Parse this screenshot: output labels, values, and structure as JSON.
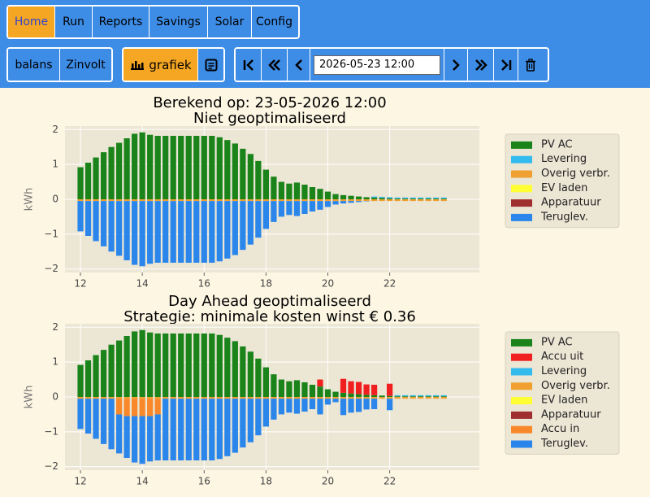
{
  "nav": {
    "tabs": [
      "Home",
      "Run",
      "Reports",
      "Savings",
      "Solar",
      "Config"
    ],
    "active": 0
  },
  "toolbar": {
    "sources": [
      "balans",
      "Zinvolt"
    ],
    "view": "grafiek",
    "date": "2026-05-23 12:00"
  },
  "chart_data": [
    {
      "type": "bar",
      "stacked": true,
      "title": "Berekend op: 23-05-2026 12:00",
      "subtitle": "Niet geoptimaliseerd",
      "y_label": "kWh",
      "grid": true,
      "legend": "right",
      "xlim": [
        11.5,
        24.9
      ],
      "ylim": [
        -2.1,
        2.1
      ],
      "xticks": [
        12,
        14,
        16,
        18,
        20,
        22
      ],
      "yticks": [
        {
          "value": -2,
          "label": "−2"
        },
        {
          "value": -1,
          "label": "−1"
        },
        0,
        1,
        2
      ],
      "x": [
        12,
        12.25,
        12.5,
        12.75,
        13,
        13.25,
        13.5,
        13.75,
        14,
        14.25,
        14.5,
        14.75,
        15,
        15.25,
        15.5,
        15.75,
        16,
        16.25,
        16.5,
        16.75,
        17,
        17.25,
        17.5,
        17.75,
        18,
        18.25,
        18.5,
        18.75,
        19,
        19.25,
        19.5,
        19.75,
        20,
        20.25,
        20.5,
        20.75,
        21,
        21.25,
        21.5,
        21.75,
        22,
        22.25,
        22.5,
        22.75,
        23,
        23.25,
        23.5,
        23.75
      ],
      "series": [
        {
          "name": "PV AC",
          "color": "#1a841a",
          "values": [
            0.92,
            1.05,
            1.2,
            1.35,
            1.5,
            1.62,
            1.75,
            1.88,
            1.92,
            1.85,
            1.82,
            1.82,
            1.82,
            1.82,
            1.82,
            1.82,
            1.82,
            1.82,
            1.78,
            1.7,
            1.6,
            1.45,
            1.3,
            1.1,
            0.85,
            0.65,
            0.5,
            0.45,
            0.48,
            0.42,
            0.35,
            0.3,
            0.22,
            0.15,
            0.12,
            0.1,
            0.08,
            0.06,
            0.05,
            0.04,
            0.03,
            0.02,
            0.02,
            0.02,
            0.02,
            0.02,
            0.02,
            0.02
          ]
        },
        {
          "name": "Levering",
          "color": "#33bbee",
          "values": [
            0,
            0,
            0,
            0,
            0,
            0,
            0,
            0,
            0,
            0,
            0,
            0,
            0,
            0,
            0,
            0,
            0,
            0,
            0,
            0,
            0,
            0,
            0,
            0,
            0,
            0,
            0,
            0,
            0,
            0,
            0,
            0,
            0,
            0,
            0,
            0,
            0,
            0,
            0.03,
            0.03,
            0.03,
            0.03,
            0.03,
            0.03,
            0.03,
            0.03,
            0.03,
            0.03
          ]
        },
        {
          "name": "Overig verbr.",
          "color": "#f0a030",
          "values": [
            -0.05,
            -0.05,
            -0.05,
            -0.05,
            -0.05,
            -0.05,
            -0.05,
            -0.05,
            -0.05,
            -0.05,
            -0.05,
            -0.05,
            -0.05,
            -0.05,
            -0.05,
            -0.05,
            -0.05,
            -0.05,
            -0.05,
            -0.05,
            -0.05,
            -0.05,
            -0.05,
            -0.05,
            -0.05,
            -0.05,
            -0.05,
            -0.05,
            -0.05,
            -0.05,
            -0.05,
            -0.05,
            -0.05,
            -0.05,
            -0.05,
            -0.05,
            -0.05,
            -0.05,
            -0.05,
            -0.05,
            -0.05,
            -0.05,
            -0.05,
            -0.05,
            -0.05,
            -0.05,
            -0.05,
            -0.05
          ]
        },
        {
          "name": "EV laden",
          "color": "#ffff33",
          "values": [
            0,
            0,
            0,
            0,
            0,
            0,
            0,
            0,
            0,
            0,
            0,
            0,
            0,
            0,
            0,
            0,
            0,
            0,
            0,
            0,
            0,
            0,
            0,
            0,
            0,
            0,
            0,
            0,
            0,
            0,
            0,
            0,
            0,
            0,
            0,
            0,
            0,
            0,
            0,
            0,
            0,
            0,
            0,
            0,
            0,
            0,
            0,
            0
          ]
        },
        {
          "name": "Apparatuur",
          "color": "#a03030",
          "values": [
            0,
            0,
            0,
            0,
            0,
            0,
            0,
            0,
            0,
            0,
            0,
            0,
            0,
            0,
            0,
            0,
            0,
            0,
            0,
            0,
            0,
            0,
            0,
            0,
            0,
            0,
            0,
            0,
            0,
            0,
            0,
            0,
            0,
            0,
            0,
            0,
            0,
            0,
            0,
            0,
            0,
            0,
            0,
            0,
            0,
            0,
            0,
            0
          ]
        },
        {
          "name": "Teruglev.",
          "color": "#2a86ea",
          "values": [
            -0.87,
            -1.0,
            -1.15,
            -1.3,
            -1.45,
            -1.57,
            -1.7,
            -1.83,
            -1.87,
            -1.8,
            -1.77,
            -1.77,
            -1.77,
            -1.77,
            -1.77,
            -1.77,
            -1.77,
            -1.77,
            -1.73,
            -1.65,
            -1.55,
            -1.4,
            -1.25,
            -1.05,
            -0.8,
            -0.6,
            -0.45,
            -0.4,
            -0.43,
            -0.37,
            -0.3,
            -0.25,
            -0.17,
            -0.1,
            -0.07,
            -0.05,
            -0.03,
            -0.01,
            0,
            0,
            0,
            0,
            0,
            0,
            0,
            0,
            0,
            0
          ]
        }
      ]
    },
    {
      "type": "bar",
      "stacked": true,
      "title": "Day Ahead geoptimaliseerd",
      "subtitle": "Strategie: minimale kosten winst € 0.36",
      "y_label": "kWh",
      "grid": true,
      "legend": "right",
      "xlim": [
        11.5,
        24.9
      ],
      "ylim": [
        -2.1,
        2.1
      ],
      "xticks": [
        12,
        14,
        16,
        18,
        20,
        22
      ],
      "yticks": [
        {
          "value": -2,
          "label": "−2"
        },
        {
          "value": -1,
          "label": "−1"
        },
        0,
        1,
        2
      ],
      "x": [
        12,
        12.25,
        12.5,
        12.75,
        13,
        13.25,
        13.5,
        13.75,
        14,
        14.25,
        14.5,
        14.75,
        15,
        15.25,
        15.5,
        15.75,
        16,
        16.25,
        16.5,
        16.75,
        17,
        17.25,
        17.5,
        17.75,
        18,
        18.25,
        18.5,
        18.75,
        19,
        19.25,
        19.5,
        19.75,
        20,
        20.25,
        20.5,
        20.75,
        21,
        21.25,
        21.5,
        21.75,
        22,
        22.25,
        22.5,
        22.75,
        23,
        23.25,
        23.5,
        23.75
      ],
      "series": [
        {
          "name": "PV AC",
          "color": "#1a841a",
          "values": [
            0.92,
            1.05,
            1.2,
            1.35,
            1.5,
            1.62,
            1.75,
            1.88,
            1.92,
            1.85,
            1.82,
            1.82,
            1.82,
            1.82,
            1.82,
            1.82,
            1.82,
            1.82,
            1.78,
            1.7,
            1.6,
            1.45,
            1.3,
            1.1,
            0.85,
            0.65,
            0.5,
            0.45,
            0.48,
            0.42,
            0.35,
            0.3,
            0.22,
            0.15,
            0.12,
            0.1,
            0.08,
            0.06,
            0.05,
            0.04,
            0.03,
            0.02,
            0.02,
            0.02,
            0.02,
            0.02,
            0.02,
            0.02
          ]
        },
        {
          "name": "Accu uit",
          "color": "#f02020",
          "values": [
            0,
            0,
            0,
            0,
            0,
            0,
            0,
            0,
            0,
            0,
            0,
            0,
            0,
            0,
            0,
            0,
            0,
            0,
            0,
            0,
            0,
            0,
            0,
            0,
            0,
            0,
            0,
            0,
            0,
            0,
            0,
            0.2,
            0,
            0,
            0.4,
            0.35,
            0.35,
            0.3,
            0.3,
            0,
            0.35,
            0,
            0,
            0,
            0,
            0,
            0,
            0
          ]
        },
        {
          "name": "Levering",
          "color": "#33bbee",
          "values": [
            0,
            0,
            0,
            0,
            0,
            0,
            0,
            0,
            0,
            0,
            0,
            0,
            0,
            0,
            0,
            0,
            0,
            0,
            0,
            0,
            0,
            0,
            0,
            0,
            0,
            0,
            0,
            0,
            0,
            0,
            0,
            0,
            0,
            0,
            0,
            0,
            0,
            0,
            0,
            0,
            0,
            0.03,
            0.03,
            0.03,
            0.03,
            0.03,
            0.03,
            0.03
          ]
        },
        {
          "name": "Overig verbr.",
          "color": "#f0a030",
          "values": [
            -0.05,
            -0.05,
            -0.05,
            -0.05,
            -0.05,
            -0.05,
            -0.05,
            -0.05,
            -0.05,
            -0.05,
            -0.05,
            -0.05,
            -0.05,
            -0.05,
            -0.05,
            -0.05,
            -0.05,
            -0.05,
            -0.05,
            -0.05,
            -0.05,
            -0.05,
            -0.05,
            -0.05,
            -0.05,
            -0.05,
            -0.05,
            -0.05,
            -0.05,
            -0.05,
            -0.05,
            -0.05,
            -0.05,
            -0.05,
            -0.05,
            -0.05,
            -0.05,
            -0.05,
            -0.05,
            -0.05,
            -0.05,
            -0.05,
            -0.05,
            -0.05,
            -0.05,
            -0.05,
            -0.05,
            -0.05
          ]
        },
        {
          "name": "EV laden",
          "color": "#ffff33",
          "values": [
            0,
            0,
            0,
            0,
            0,
            0,
            0,
            0,
            0,
            0,
            0,
            0,
            0,
            0,
            0,
            0,
            0,
            0,
            0,
            0,
            0,
            0,
            0,
            0,
            0,
            0,
            0,
            0,
            0,
            0,
            0,
            0,
            0,
            0,
            0,
            0,
            0,
            0,
            0,
            0,
            0,
            0,
            0,
            0,
            0,
            0,
            0,
            0
          ]
        },
        {
          "name": "Apparatuur",
          "color": "#a03030",
          "values": [
            0,
            0,
            0,
            0,
            0,
            0,
            0,
            0,
            0,
            0,
            0,
            0,
            0,
            0,
            0,
            0,
            0,
            0,
            0,
            0,
            0,
            0,
            0,
            0,
            0,
            0,
            0,
            0,
            0,
            0,
            0,
            0,
            0,
            0,
            0,
            0,
            0,
            0,
            0,
            0,
            0,
            0,
            0,
            0,
            0,
            0,
            0,
            0
          ]
        },
        {
          "name": "Accu in",
          "color": "#f8882a",
          "values": [
            0,
            0,
            0,
            0,
            0,
            -0.45,
            -0.5,
            -0.5,
            -0.5,
            -0.5,
            -0.45,
            0,
            0,
            0,
            0,
            0,
            0,
            0,
            0,
            0,
            0,
            0,
            0,
            0,
            0,
            0,
            0,
            0,
            0,
            0,
            0,
            0,
            0,
            0,
            0,
            0,
            0,
            0,
            0,
            0,
            0,
            0,
            0,
            0,
            0,
            0,
            0,
            0
          ]
        },
        {
          "name": "Teruglev.",
          "color": "#2a86ea",
          "values": [
            -0.87,
            -1.0,
            -1.15,
            -1.3,
            -1.45,
            -1.12,
            -1.2,
            -1.33,
            -1.37,
            -1.3,
            -1.32,
            -1.77,
            -1.77,
            -1.77,
            -1.77,
            -1.77,
            -1.77,
            -1.77,
            -1.73,
            -1.65,
            -1.55,
            -1.4,
            -1.25,
            -1.05,
            -0.8,
            -0.6,
            -0.45,
            -0.4,
            -0.43,
            -0.37,
            -0.3,
            -0.45,
            -0.17,
            -0.1,
            -0.47,
            -0.4,
            -0.38,
            -0.31,
            -0.3,
            0,
            -0.33,
            0,
            0,
            0,
            0,
            0,
            0,
            0
          ]
        }
      ]
    }
  ]
}
